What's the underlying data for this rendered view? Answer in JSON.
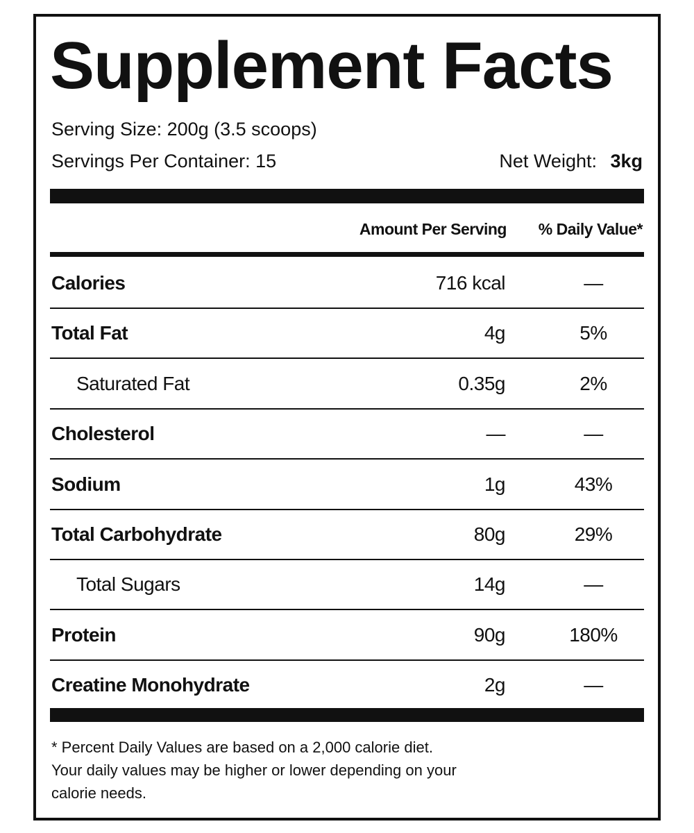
{
  "header": {
    "title": "Supplement Facts",
    "serving_size": "Serving Size: 200g (3.5 scoops)",
    "servings_per_container": "Servings Per Container: 15",
    "net_weight_label": "Net Weight:",
    "net_weight_value": "3kg"
  },
  "table": {
    "columns": [
      "Amount Per Serving",
      "% Daily Value*"
    ],
    "rows": [
      [
        "Calories",
        "716 kcal",
        "—"
      ],
      [
        "Total Fat",
        "4g",
        "5%"
      ],
      [
        "Saturated Fat",
        "0.35g",
        "2%"
      ],
      [
        "Cholesterol",
        "—",
        "—"
      ],
      [
        "Sodium",
        "1g",
        "43%"
      ],
      [
        "Total Carbohydrate",
        "80g",
        "29%"
      ],
      [
        "Total Sugars",
        "14g",
        "—"
      ],
      [
        "Protein",
        "90g",
        "180%"
      ],
      [
        "Creatine Monohydrate",
        "2g",
        "—"
      ]
    ]
  },
  "footnote": [
    "* Percent Daily Values are based on a 2,000 calorie diet.",
    "Your daily values may be higher or lower depending on your",
    "calorie needs."
  ]
}
